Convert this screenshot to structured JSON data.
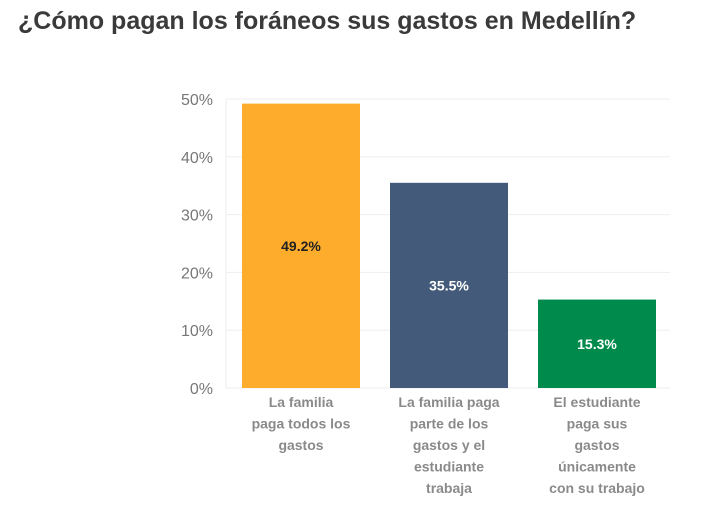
{
  "chart_data": {
    "type": "bar",
    "title": "¿Cómo pagan los foráneos sus gastos en Medellín?",
    "categories": [
      [
        "La familia",
        "paga todos los",
        "gastos"
      ],
      [
        "La familia paga",
        "parte de los",
        "gastos y el",
        "estudiante",
        "trabaja"
      ],
      [
        "El estudiante",
        "paga sus",
        "gastos",
        "únicamente",
        "con su trabajo"
      ]
    ],
    "values": [
      49.2,
      35.5,
      15.3
    ],
    "data_labels": [
      "49.2%",
      "35.5%",
      "15.3%"
    ],
    "colors": [
      "#fdad2b",
      "#445a7a",
      "#008a4b"
    ],
    "label_colors": [
      "#222222",
      "#ffffff",
      "#ffffff"
    ],
    "ylim": [
      0,
      50
    ],
    "yticks": [
      0,
      10,
      20,
      30,
      40,
      50
    ],
    "ytick_labels": [
      "0%",
      "10%",
      "20%",
      "30%",
      "40%",
      "50%"
    ],
    "grid": true,
    "xlabel": "",
    "ylabel": ""
  }
}
